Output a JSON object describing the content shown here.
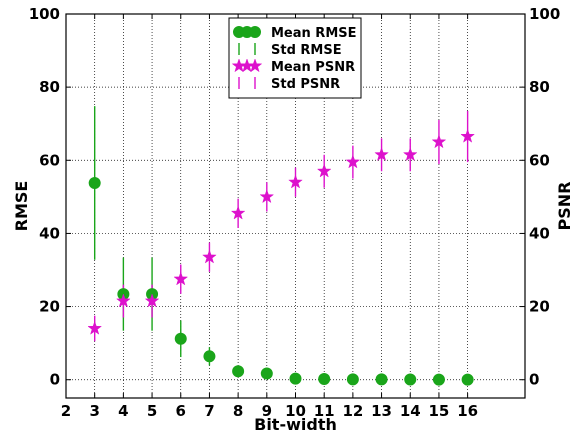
{
  "chart_data": {
    "type": "scatter",
    "title": "",
    "xlabel": "Bit-width",
    "ylabel_left": "RMSE",
    "ylabel_right": "PSNR",
    "xlim": [
      2,
      18
    ],
    "ylim": [
      -5,
      100
    ],
    "x_ticks": [
      2,
      3,
      4,
      5,
      6,
      7,
      8,
      9,
      10,
      11,
      12,
      13,
      14,
      15,
      16
    ],
    "y_ticks": [
      0,
      20,
      40,
      60,
      80,
      100
    ],
    "grid": true,
    "grid_style": "dotted",
    "legend_position": "top-center",
    "x": [
      3,
      4,
      5,
      6,
      7,
      8,
      9,
      10,
      11,
      12,
      13,
      14,
      15,
      16
    ],
    "series": [
      {
        "name": "Mean RMSE",
        "std_name": "Std RMSE",
        "color": "#1aa51a",
        "marker": "circle",
        "values": [
          53.8,
          23.4,
          23.4,
          11.2,
          6.4,
          2.3,
          1.7,
          0.3,
          0.2,
          0.1,
          0.1,
          0.05,
          0.03,
          0.02
        ],
        "std": [
          21,
          10,
          10,
          5,
          2.5,
          0.8,
          0.5,
          0.2,
          0.1,
          0.05,
          0.05,
          0.02,
          0.02,
          0.01
        ]
      },
      {
        "name": "Mean PSNR",
        "std_name": "Std PSNR",
        "color": "#dd11cc",
        "marker": "star",
        "values": [
          14,
          21.5,
          21.5,
          27.5,
          33.5,
          45.5,
          50,
          54,
          57,
          59.5,
          61.5,
          61.5,
          65,
          66.5
        ],
        "std": [
          3.5,
          4.5,
          4.5,
          4,
          4,
          4,
          4,
          4,
          4.5,
          4.5,
          4.5,
          4.5,
          6,
          7
        ]
      }
    ]
  }
}
